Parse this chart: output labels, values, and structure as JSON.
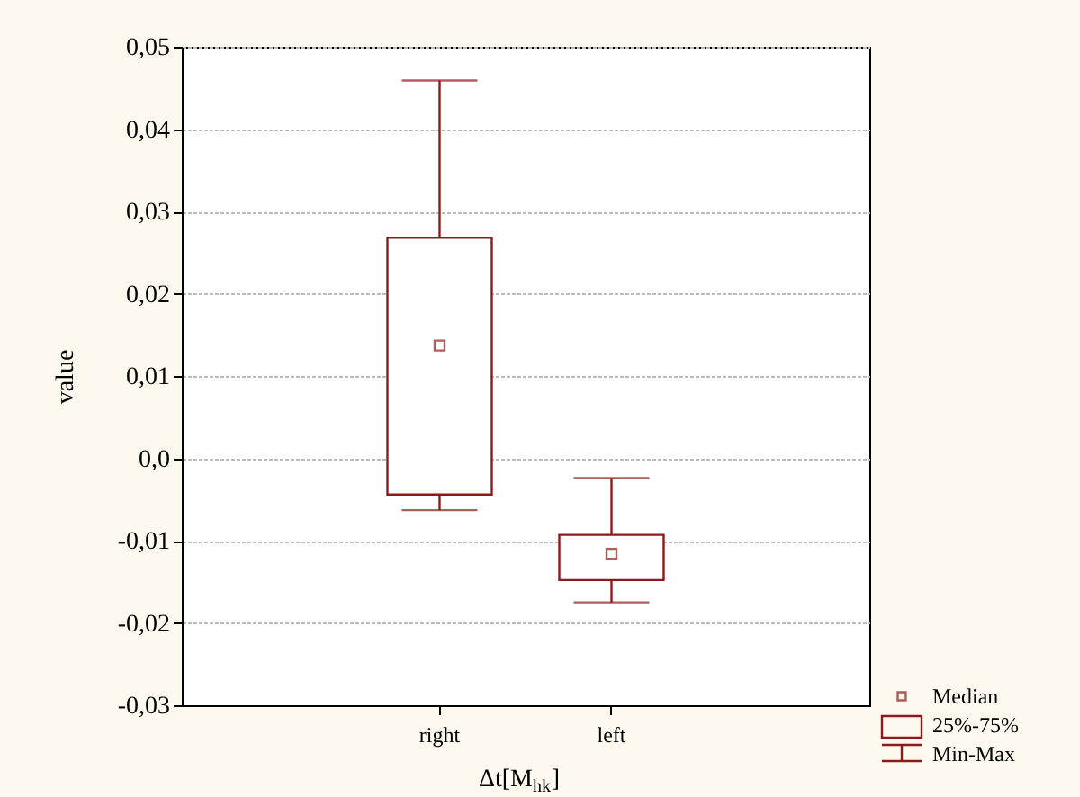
{
  "chart_data": {
    "type": "box",
    "categories": [
      "right",
      "left"
    ],
    "boxes": [
      {
        "low": -0.0063,
        "q1": -0.0044,
        "median": 0.0137,
        "q3": 0.0268,
        "high": 0.0459
      },
      {
        "low": -0.0175,
        "q1": -0.0148,
        "median": -0.0116,
        "q3": -0.0093,
        "high": -0.0024
      }
    ],
    "color": "#8b1a1a",
    "xlabel": "Δt[M$_{hk}$]",
    "ylabel": "value",
    "ylim": [
      -0.03,
      0.05
    ],
    "yticks": [
      {
        "value": -0.03,
        "label": "-0,03"
      },
      {
        "value": -0.02,
        "label": "-0,02"
      },
      {
        "value": -0.01,
        "label": "-0,01"
      },
      {
        "value": 0,
        "label": "0,0"
      },
      {
        "value": 0.01,
        "label": "0,01"
      },
      {
        "value": 0.02,
        "label": "0,02"
      },
      {
        "value": 0.03,
        "label": "0,03"
      },
      {
        "value": 0.04,
        "label": "0,04"
      },
      {
        "value": 0.05,
        "label": "0,05"
      }
    ],
    "grid": "y",
    "annotations": [
      "Median",
      "25%-75%",
      "Min-Max"
    ]
  }
}
